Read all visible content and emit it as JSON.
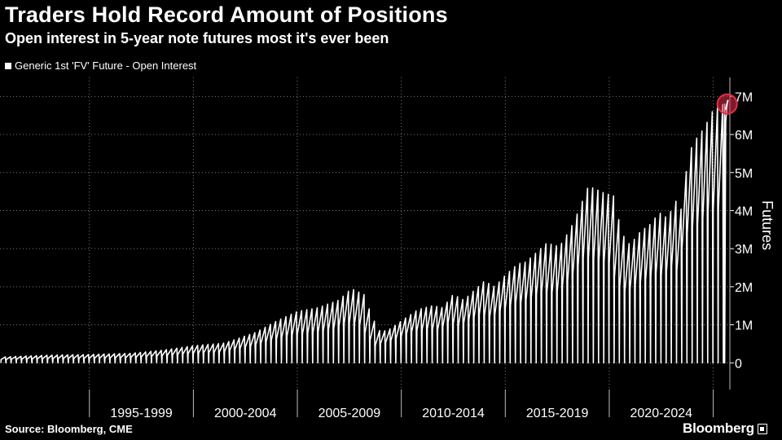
{
  "header": {
    "title": "Traders Hold Record Amount of Positions",
    "subtitle": "Open interest in 5-year note futures most it's ever been"
  },
  "legend": {
    "label": "Generic 1st 'FV' Future - Open Interest"
  },
  "footer": {
    "source": "Source: Bloomberg, CME",
    "brand": "Bloomberg"
  },
  "colors": {
    "background": "#000000",
    "series": "#ffffff",
    "grid": "#7a7a7a",
    "highlight": "#e0304a"
  },
  "chart_data": {
    "type": "line",
    "title": "Traders Hold Record Amount of Positions",
    "subtitle": "Open interest in 5-year note futures most it's ever been",
    "xlabel": "",
    "ylabel": "Futures",
    "y_axis_side": "right",
    "x_tick_labels": [
      "1995-1999",
      "2000-2004",
      "2005-2009",
      "2010-2014",
      "2015-2019",
      "2020-2024"
    ],
    "y_tick_labels": [
      "0",
      "1M",
      "2M",
      "3M",
      "4M",
      "5M",
      "6M",
      "7M"
    ],
    "y_ticks": [
      0,
      1000000,
      2000000,
      3000000,
      4000000,
      5000000,
      6000000,
      7000000
    ],
    "xlim": [
      1990.7,
      2025.8
    ],
    "ylim": [
      -700000,
      7500000
    ],
    "grid": true,
    "legend_position": "top-left",
    "series": [
      {
        "name": "Generic 1st 'FV' Future - Open Interest",
        "pattern": "quarterly contract-roll sawtooth: open interest builds to the peak level each quarter then drops to near zero at expiry",
        "peak_envelope": {
          "x": [
            1990.7,
            1993.0,
            1995.0,
            1997.0,
            1998.5,
            2000.0,
            2001.5,
            2003.0,
            2004.0,
            2005.0,
            2006.0,
            2007.0,
            2007.6,
            2008.2,
            2008.6,
            2009.0,
            2009.5,
            2010.0,
            2010.8,
            2011.5,
            2012.0,
            2012.5,
            2013.0,
            2013.6,
            2014.0,
            2014.5,
            2015.0,
            2015.6,
            2016.0,
            2016.5,
            2017.0,
            2017.6,
            2018.0,
            2018.3,
            2018.6,
            2019.0,
            2019.4,
            2019.8,
            2020.2,
            2020.6,
            2021.0,
            2021.5,
            2022.0,
            2022.4,
            2022.8,
            2023.2,
            2023.5,
            2023.8,
            2024.2,
            2024.6,
            2025.0,
            2025.5
          ],
          "y": [
            150000,
            200000,
            220000,
            250000,
            330000,
            450000,
            520000,
            800000,
            1100000,
            1350000,
            1450000,
            1650000,
            1950000,
            1800000,
            1200000,
            800000,
            900000,
            1100000,
            1400000,
            1500000,
            1450000,
            1800000,
            1650000,
            1950000,
            2150000,
            2000000,
            2300000,
            2600000,
            2650000,
            2900000,
            3150000,
            3050000,
            3400000,
            3700000,
            4100000,
            4650000,
            4550000,
            4450000,
            4400000,
            3400000,
            3100000,
            3450000,
            3650000,
            3950000,
            3800000,
            4250000,
            4000000,
            5500000,
            5900000,
            6200000,
            6650000,
            6800000
          ]
        },
        "last_value": 6800000,
        "trough_level": 0
      }
    ],
    "annotations": [
      {
        "type": "circle-highlight",
        "target": "last_value",
        "note": "record high"
      }
    ]
  }
}
